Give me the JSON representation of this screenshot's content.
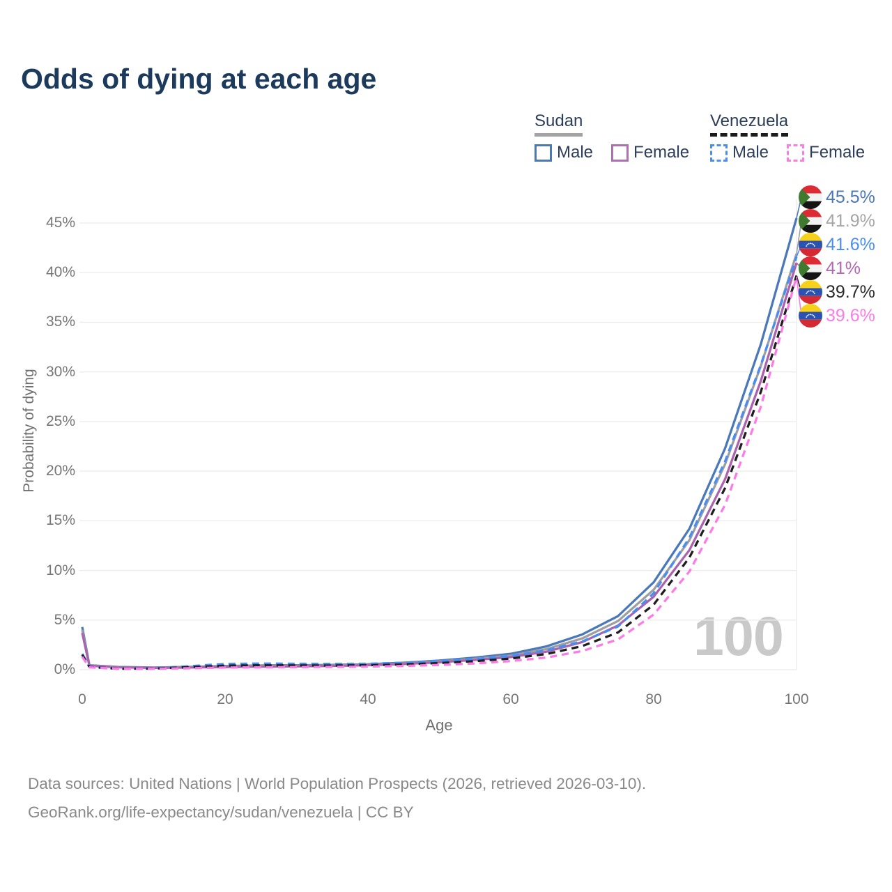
{
  "title": "Odds of dying at each age",
  "legend": {
    "groups": [
      {
        "label": "Sudan",
        "line_style": "solid",
        "line_color": "#a3a3a3",
        "items": [
          {
            "label": "Male",
            "color": "#4a78b8",
            "style": "solid"
          },
          {
            "label": "Female",
            "color": "#b06fb3",
            "style": "solid"
          }
        ]
      },
      {
        "label": "Venezuela",
        "line_style": "dashed",
        "line_color": "#1b1b1b",
        "items": [
          {
            "label": "Male",
            "color": "#4a8df2",
            "style": "dashed"
          },
          {
            "label": "Female",
            "color": "#fb7ce6",
            "style": "dashed"
          }
        ]
      }
    ]
  },
  "chart_data": {
    "type": "line",
    "title": "Odds of dying at each age",
    "xlabel": "Age",
    "ylabel": "Probability of dying",
    "x_ticks": [
      0,
      20,
      40,
      60,
      80,
      100
    ],
    "y_ticks": [
      0,
      5,
      10,
      15,
      20,
      25,
      30,
      35,
      40,
      45
    ],
    "y_tick_suffix": "%",
    "xlim": [
      0,
      100
    ],
    "ylim": [
      0,
      47
    ],
    "grid": "horizontal",
    "legend_position": "top-right",
    "watermark": "100",
    "ages": [
      0,
      1,
      5,
      10,
      15,
      20,
      25,
      30,
      35,
      40,
      45,
      50,
      55,
      60,
      65,
      70,
      75,
      80,
      85,
      90,
      95,
      100
    ],
    "series": [
      {
        "id": "sudan-male",
        "country": "sudan",
        "sex": "male",
        "color": "#4a78b8",
        "dash": false,
        "end_label": "45.5%",
        "end_value": 45.5,
        "values": [
          4.3,
          0.45,
          0.28,
          0.22,
          0.28,
          0.38,
          0.42,
          0.44,
          0.48,
          0.55,
          0.7,
          0.92,
          1.22,
          1.6,
          2.35,
          3.55,
          5.4,
          8.8,
          14.2,
          22.3,
          32.8,
          45.5
        ]
      },
      {
        "id": "sudan-both",
        "country": "sudan",
        "sex": "both",
        "color": "#9e9e9e",
        "label_color": "#a6a6a6",
        "dash": false,
        "end_label": "41.9%",
        "end_value": 41.9,
        "values": [
          4.0,
          0.42,
          0.26,
          0.2,
          0.25,
          0.33,
          0.37,
          0.39,
          0.43,
          0.5,
          0.63,
          0.83,
          1.1,
          1.42,
          2.08,
          3.15,
          4.9,
          8.05,
          13.05,
          20.7,
          30.6,
          41.9
        ]
      },
      {
        "id": "venezuela-male",
        "country": "venezuela",
        "sex": "male",
        "color": "#4a8df2",
        "dash": true,
        "end_label": "41.6%",
        "end_value": 41.6,
        "values": [
          1.6,
          0.3,
          0.12,
          0.14,
          0.35,
          0.58,
          0.62,
          0.6,
          0.58,
          0.6,
          0.7,
          0.88,
          1.08,
          1.38,
          1.95,
          2.85,
          4.35,
          7.7,
          13.3,
          21.0,
          30.7,
          41.6
        ]
      },
      {
        "id": "sudan-female",
        "country": "sudan",
        "sex": "female",
        "color": "#ab63ad",
        "label_color": "#b468b4",
        "dash": false,
        "end_label": "41%",
        "end_value": 41.0,
        "values": [
          3.7,
          0.4,
          0.24,
          0.18,
          0.22,
          0.27,
          0.31,
          0.34,
          0.38,
          0.45,
          0.57,
          0.75,
          0.98,
          1.27,
          1.82,
          2.78,
          4.45,
          7.35,
          12.05,
          19.2,
          29.1,
          41.0
        ]
      },
      {
        "id": "venezuela-both",
        "country": "venezuela",
        "sex": "both",
        "color": "#1e1e1e",
        "label_color": "#2a2a2a",
        "dash": true,
        "end_label": "39.7%",
        "end_value": 39.7,
        "values": [
          1.5,
          0.27,
          0.1,
          0.11,
          0.25,
          0.41,
          0.44,
          0.43,
          0.42,
          0.45,
          0.53,
          0.67,
          0.86,
          1.12,
          1.58,
          2.38,
          3.75,
          6.55,
          11.3,
          18.3,
          28.0,
          39.7
        ]
      },
      {
        "id": "venezuela-female",
        "country": "venezuela",
        "sex": "female",
        "color": "#fb7ce6",
        "dash": true,
        "end_label": "39.6%",
        "end_value": 39.6,
        "values": [
          1.3,
          0.24,
          0.09,
          0.09,
          0.15,
          0.22,
          0.24,
          0.26,
          0.28,
          0.31,
          0.38,
          0.48,
          0.63,
          0.87,
          1.22,
          1.88,
          3.05,
          5.55,
          9.9,
          16.6,
          26.5,
          39.6
        ]
      }
    ]
  },
  "footer": {
    "line1": "Data sources: United Nations | World Population Prospects (2026, retrieved 2026-03-10).",
    "line2": "GeoRank.org/life-expectancy/sudan/venezuela | CC BY"
  }
}
